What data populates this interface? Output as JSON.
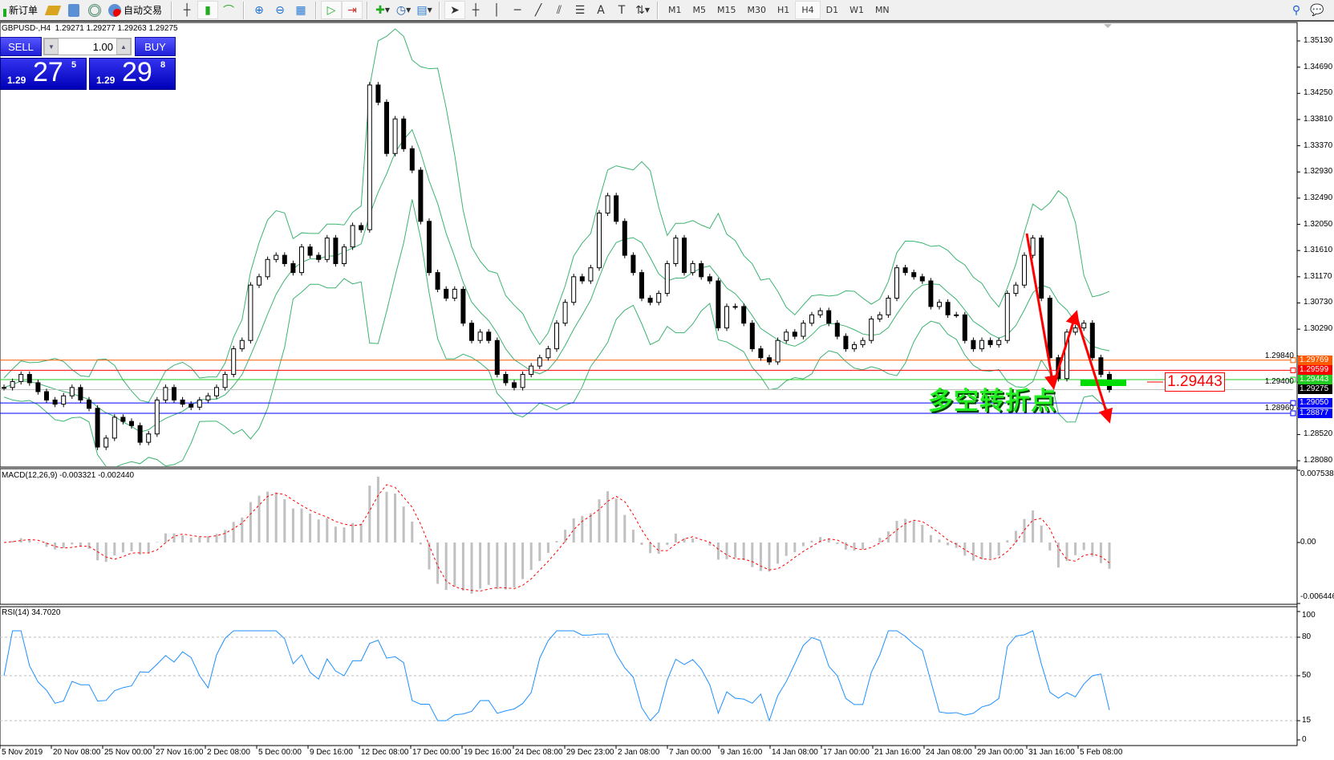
{
  "toolbar": {
    "new_order": "新订单",
    "auto_trading": "自动交易",
    "timeframes": [
      "M1",
      "M5",
      "M15",
      "M30",
      "H1",
      "H4",
      "D1",
      "W1",
      "MN"
    ],
    "active_timeframe": "H4"
  },
  "chart": {
    "symbol_line": "GBPUSD-,H4  1.29271 1.29277 1.29263 1.29275"
  },
  "trade_panel": {
    "sell": "SELL",
    "buy": "BUY",
    "lot": "1.00",
    "bid_prefix": "1.29",
    "bid_big": "27",
    "bid_sup": "5",
    "ask_prefix": "1.29",
    "ask_big": "29",
    "ask_sup": "8"
  },
  "annotation": {
    "text": "多空转折点",
    "price_label": "1.29443",
    "arrow_color": "#ff0000",
    "marker_color": "#00dd00"
  },
  "chart_data": [
    {
      "type": "candlestick",
      "symbol": "GBPUSD-",
      "timeframe": "H4",
      "closes": [
        1.2931,
        1.2941,
        1.2953,
        1.2939,
        1.2924,
        1.291,
        1.2903,
        1.2917,
        1.2931,
        1.291,
        1.2896,
        1.2831,
        1.2846,
        1.2881,
        1.2874,
        1.2867,
        1.2839,
        1.2853,
        1.291,
        1.2931,
        1.291,
        1.2903,
        1.2898,
        1.291,
        1.2917,
        1.2931,
        1.2953,
        1.2996,
        1.301,
        1.3103,
        1.3117,
        1.3146,
        1.3153,
        1.3139,
        1.3124,
        1.3167,
        1.3153,
        1.3146,
        1.3182,
        1.3139,
        1.3167,
        1.3203,
        1.3196,
        1.3439,
        1.341,
        1.3324,
        1.3382,
        1.3332,
        1.3296,
        1.321,
        1.3124,
        1.3096,
        1.3081,
        1.3096,
        1.3039,
        1.301,
        1.3024,
        1.301,
        1.2953,
        1.2939,
        1.2931,
        1.2953,
        1.2967,
        1.2981,
        1.2996,
        1.3039,
        1.3074,
        1.3117,
        1.311,
        1.3132,
        1.3224,
        1.3253,
        1.321,
        1.3153,
        1.3124,
        1.3081,
        1.3074,
        1.3089,
        1.3139,
        1.3182,
        1.3124,
        1.3139,
        1.3117,
        1.311,
        1.3031,
        1.3067,
        1.3067,
        1.3039,
        1.2996,
        1.2981,
        1.2974,
        1.301,
        1.3024,
        1.3017,
        1.3039,
        1.3053,
        1.306,
        1.3039,
        1.3017,
        1.2996,
        1.3003,
        1.301,
        1.3046,
        1.3053,
        1.3081,
        1.3132,
        1.3124,
        1.3117,
        1.311,
        1.3067,
        1.3074,
        1.3053,
        1.3053,
        1.301,
        1.2996,
        1.301,
        1.3003,
        1.301,
        1.3089,
        1.3103,
        1.3153,
        1.3182,
        1.3081,
        1.2981,
        1.2946,
        1.3024,
        1.3031,
        1.3039,
        1.2981,
        1.2953,
        1.29275
      ],
      "ylim": [
        1.2796,
        1.3536
      ],
      "y_ticks": [
        "1.35130",
        "1.34690",
        "1.34250",
        "1.33810",
        "1.33370",
        "1.32930",
        "1.32490",
        "1.32050",
        "1.31610",
        "1.31170",
        "1.30730",
        "1.30290",
        "1.29840",
        "1.29400",
        "1.28960",
        "1.28520",
        "1.28080"
      ],
      "x_tick_labels": [
        "5 Nov 2019",
        "20 Nov 08:00",
        "25 Nov 00:00",
        "27 Nov 16:00",
        "2 Dec 08:00",
        "5 Dec 00:00",
        "9 Dec 16:00",
        "12 Dec 08:00",
        "17 Dec 00:00",
        "19 Dec 16:00",
        "24 Dec 08:00",
        "29 Dec 23:00",
        "2 Jan 08:00",
        "7 Jan 00:00",
        "9 Jan 16:00",
        "14 Jan 08:00",
        "17 Jan 00:00",
        "21 Jan 16:00",
        "24 Jan 08:00",
        "29 Jan 00:00",
        "31 Jan 16:00",
        "5 Feb 08:00"
      ],
      "overlay": "Bollinger Bands",
      "band_color": "#3cb371",
      "levels": [
        {
          "price": "1.29769",
          "color": "#ff5a00"
        },
        {
          "price": "1.29599",
          "color": "#ff0000"
        },
        {
          "price": "1.29443",
          "color": "#22cc22"
        },
        {
          "price": "1.29275",
          "color": "#000000"
        },
        {
          "price": "1.29050",
          "color": "#0000ff"
        },
        {
          "price": "1.28877",
          "color": "#0000ff"
        }
      ],
      "current_price": "1.29275"
    },
    {
      "type": "bar+line",
      "title": "MACD(12,26,9) -0.003321 -0.002440",
      "y_ticks": [
        "0.007538",
        "0.00",
        "-0.006446"
      ],
      "ylim": [
        -0.006446,
        0.007538
      ],
      "histogram_color": "#c0c0c0",
      "signal_color": "#ff0000"
    },
    {
      "type": "line",
      "title": "RSI(14) 34.7020",
      "y_ticks": [
        "100",
        "80",
        "50",
        "15",
        "0"
      ],
      "ylim": [
        0,
        100
      ],
      "levels": [
        80,
        50,
        15
      ],
      "line_color": "#1e90ff"
    }
  ]
}
